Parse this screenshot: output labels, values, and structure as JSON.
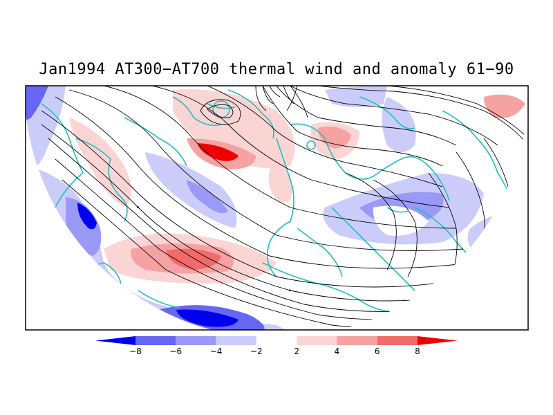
{
  "title": "Jan1994 AT300−AT700 thermal wind and anomaly 61−90",
  "colorbar": {
    "labels": [
      "−8",
      "−6",
      "−4",
      "−2",
      "2",
      "4",
      "6",
      "8"
    ],
    "colors": [
      "#0000ee",
      "#6666f2",
      "#9a9af6",
      "#ccccfa",
      "#ffffff",
      "#fbd4d4",
      "#f6a2a2",
      "#f36a6a",
      "#ee0000"
    ]
  },
  "map": {
    "land_outline_color": "#1fbfbf",
    "streamline_color": "#000000",
    "projection": "polar-stereographic (northern hemisphere, half disc)"
  }
}
